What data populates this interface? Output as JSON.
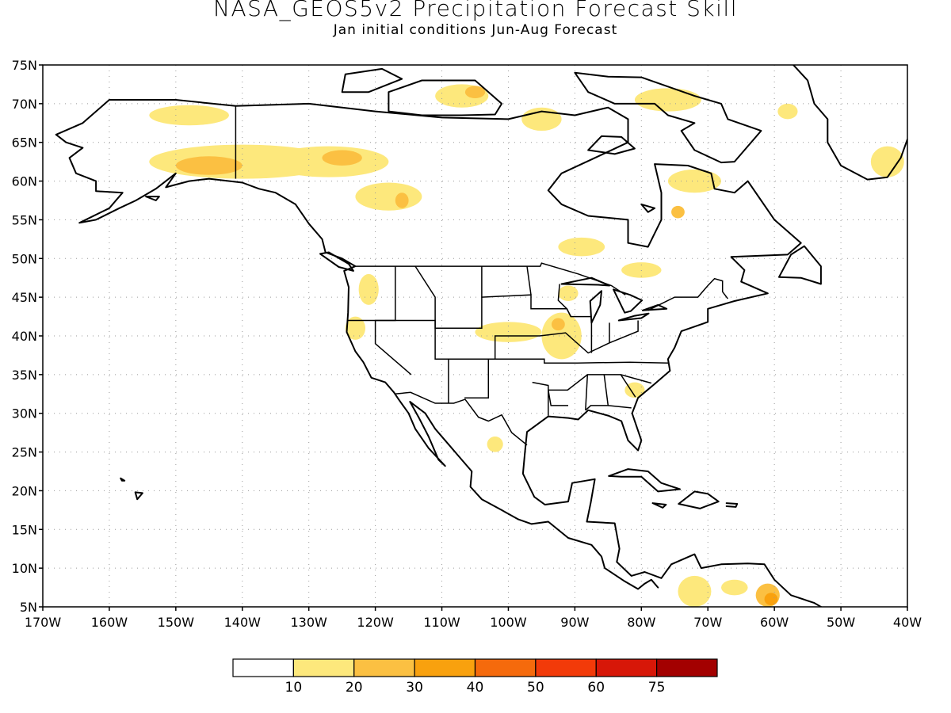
{
  "title": "NASA_GEOS5v2 Precipitation Forecast Skill",
  "subtitle": "Jan initial conditions  Jun-Aug Forecast",
  "map": {
    "lon_range": [
      -170,
      -40
    ],
    "lat_range": [
      5,
      75
    ],
    "lat_labels": [
      "5N",
      "10N",
      "15N",
      "20N",
      "25N",
      "30N",
      "35N",
      "40N",
      "45N",
      "50N",
      "55N",
      "60N",
      "65N",
      "70N",
      "75N"
    ],
    "lon_labels": [
      "170W",
      "160W",
      "150W",
      "140W",
      "130W",
      "120W",
      "110W",
      "100W",
      "90W",
      "80W",
      "70W",
      "60W",
      "50W",
      "40W"
    ],
    "grid": "dotted",
    "land_outline_color": "#000000"
  },
  "legend": {
    "labels": [
      "10",
      "20",
      "30",
      "40",
      "50",
      "60",
      "75"
    ],
    "colors": [
      "#ffffff",
      "#fde87c",
      "#fbc042",
      "#f9a10e",
      "#f56a0c",
      "#f23a09",
      "#d71708",
      "#a30000"
    ]
  },
  "skill_regions": [
    {
      "lon": -140,
      "lat": 62.5,
      "rx": 14,
      "ry": 2.2,
      "level": 1
    },
    {
      "lon": -127,
      "lat": 62.5,
      "rx": 9,
      "ry": 2,
      "level": 1
    },
    {
      "lon": -145,
      "lat": 62,
      "rx": 5,
      "ry": 1.2,
      "level": 2
    },
    {
      "lon": -125,
      "lat": 63,
      "rx": 3,
      "ry": 1,
      "level": 2
    },
    {
      "lon": -148,
      "lat": 68.5,
      "rx": 6,
      "ry": 1.3,
      "level": 1
    },
    {
      "lon": -118,
      "lat": 58,
      "rx": 5,
      "ry": 1.8,
      "level": 1
    },
    {
      "lon": -116,
      "lat": 57.5,
      "rx": 1,
      "ry": 1,
      "level": 2
    },
    {
      "lon": -107,
      "lat": 71,
      "rx": 4,
      "ry": 1.5,
      "level": 1
    },
    {
      "lon": -105,
      "lat": 71.5,
      "rx": 1.5,
      "ry": 0.8,
      "level": 2
    },
    {
      "lon": -95,
      "lat": 68,
      "rx": 3,
      "ry": 1.5,
      "level": 1
    },
    {
      "lon": -76,
      "lat": 70.5,
      "rx": 5,
      "ry": 1.5,
      "level": 1
    },
    {
      "lon": -72,
      "lat": 60,
      "rx": 4,
      "ry": 1.5,
      "level": 1
    },
    {
      "lon": -74.5,
      "lat": 56,
      "rx": 1,
      "ry": 0.8,
      "level": 2
    },
    {
      "lon": -89,
      "lat": 51.5,
      "rx": 3.5,
      "ry": 1.2,
      "level": 1
    },
    {
      "lon": -80,
      "lat": 48.5,
      "rx": 3,
      "ry": 1,
      "level": 1
    },
    {
      "lon": -100,
      "lat": 40.5,
      "rx": 5,
      "ry": 1.3,
      "level": 1
    },
    {
      "lon": -92,
      "lat": 40,
      "rx": 3,
      "ry": 3,
      "level": 1
    },
    {
      "lon": -92.5,
      "lat": 41.5,
      "rx": 1,
      "ry": 0.8,
      "level": 2
    },
    {
      "lon": -121,
      "lat": 46,
      "rx": 1.5,
      "ry": 2,
      "level": 1
    },
    {
      "lon": -123,
      "lat": 41,
      "rx": 1.5,
      "ry": 1.5,
      "level": 1
    },
    {
      "lon": -91,
      "lat": 45.5,
      "rx": 1.5,
      "ry": 1,
      "level": 1
    },
    {
      "lon": -81,
      "lat": 33,
      "rx": 1.5,
      "ry": 1,
      "level": 1
    },
    {
      "lon": -102,
      "lat": 26,
      "rx": 1.2,
      "ry": 1,
      "level": 1
    },
    {
      "lon": -72,
      "lat": 7,
      "rx": 2.5,
      "ry": 2,
      "level": 1
    },
    {
      "lon": -66,
      "lat": 7.5,
      "rx": 2,
      "ry": 1,
      "level": 1
    },
    {
      "lon": -61,
      "lat": 6.5,
      "rx": 1.8,
      "ry": 1.5,
      "level": 2
    },
    {
      "lon": -60.5,
      "lat": 6,
      "rx": 1,
      "ry": 0.8,
      "level": 3
    },
    {
      "lon": -43,
      "lat": 62.5,
      "rx": 2.5,
      "ry": 2,
      "level": 1
    },
    {
      "lon": -58,
      "lat": 69,
      "rx": 1.5,
      "ry": 1,
      "level": 1
    }
  ]
}
